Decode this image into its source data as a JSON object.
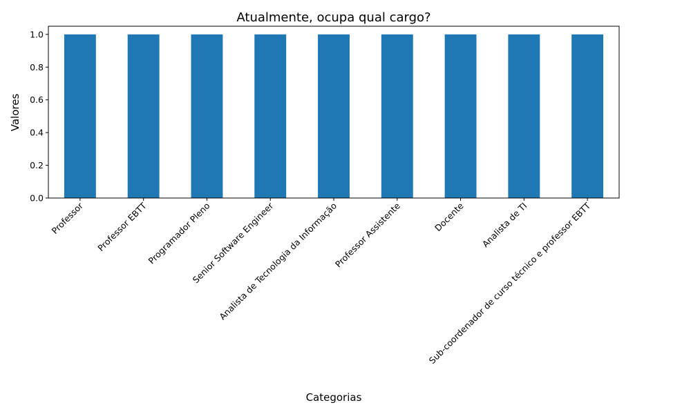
{
  "chart_data": {
    "type": "bar",
    "title": "Atualmente, ocupa qual cargo?",
    "xlabel": "Categorias",
    "ylabel": "Valores",
    "categories": [
      "Professor",
      "Professor EBTT",
      "Programador Pleno",
      "Senior Software Engineer",
      "Analista de Tecnologia da Informação",
      "Professor Assistente",
      "Docente",
      "Analista de TI",
      "Sub-coordenador de curso técnico e professor EBTT"
    ],
    "values": [
      1,
      1,
      1,
      1,
      1,
      1,
      1,
      1,
      1
    ],
    "ylim": [
      0,
      1.05
    ],
    "yticks": [
      0.0,
      0.2,
      0.4,
      0.6,
      0.8,
      1.0
    ],
    "ytick_labels": [
      "0.0",
      "0.2",
      "0.4",
      "0.6",
      "0.8",
      "1.0"
    ],
    "bar_color": "#1f77b4",
    "grid": false,
    "legend": "none"
  }
}
